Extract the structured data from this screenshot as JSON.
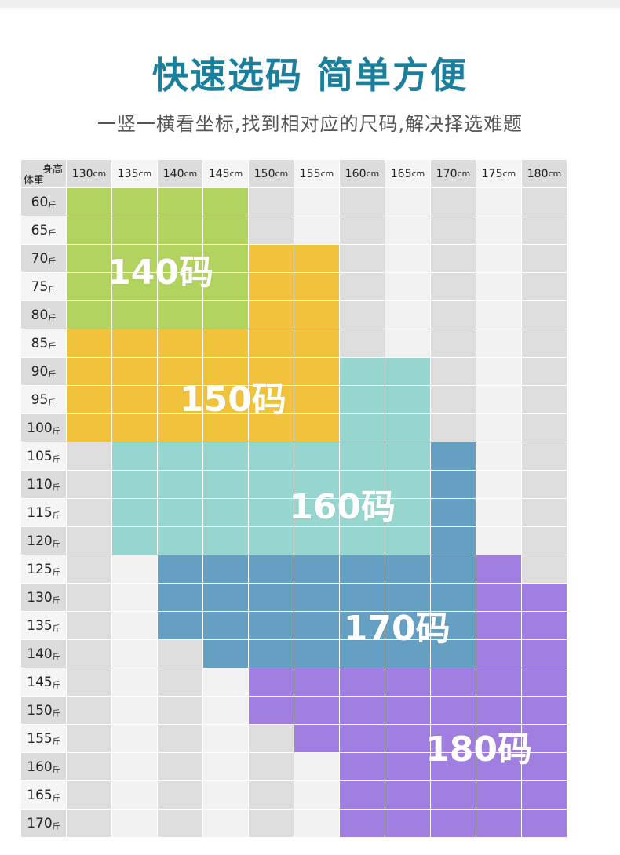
{
  "header": {
    "title": "快速选码 简单方便",
    "subtitle": "一竖一横看坐标,找到相对应的尺码,解决择选难题"
  },
  "table": {
    "corner_height_label": "身高",
    "corner_weight_label": "体重",
    "height_unit": "cm",
    "weight_unit": "斤",
    "heights": [
      "130",
      "135",
      "140",
      "145",
      "150",
      "155",
      "160",
      "165",
      "170",
      "175",
      "180"
    ],
    "weights": [
      "60",
      "65",
      "70",
      "75",
      "80",
      "85",
      "90",
      "95",
      "100",
      "105",
      "110",
      "115",
      "120",
      "125",
      "130",
      "135",
      "140",
      "145",
      "150",
      "155",
      "160",
      "165",
      "170"
    ],
    "size_grid": [
      [
        "140",
        "140",
        "140",
        "140",
        "",
        "",
        "",
        "",
        "",
        "",
        ""
      ],
      [
        "140",
        "140",
        "140",
        "140",
        "",
        "",
        "",
        "",
        "",
        "",
        ""
      ],
      [
        "140",
        "140",
        "140",
        "140",
        "150",
        "150",
        "",
        "",
        "",
        "",
        ""
      ],
      [
        "140",
        "140",
        "140",
        "140",
        "150",
        "150",
        "",
        "",
        "",
        "",
        ""
      ],
      [
        "140",
        "140",
        "140",
        "140",
        "150",
        "150",
        "",
        "",
        "",
        "",
        ""
      ],
      [
        "150",
        "150",
        "150",
        "150",
        "150",
        "150",
        "",
        "",
        "",
        "",
        ""
      ],
      [
        "150",
        "150",
        "150",
        "150",
        "150",
        "150",
        "160",
        "160",
        "",
        "",
        ""
      ],
      [
        "150",
        "150",
        "150",
        "150",
        "150",
        "150",
        "160",
        "160",
        "",
        "",
        ""
      ],
      [
        "150",
        "150",
        "150",
        "150",
        "150",
        "150",
        "160",
        "160",
        "",
        "",
        ""
      ],
      [
        "",
        "160",
        "160",
        "160",
        "160",
        "160",
        "160",
        "160",
        "170",
        "",
        ""
      ],
      [
        "",
        "160",
        "160",
        "160",
        "160",
        "160",
        "160",
        "160",
        "170",
        "",
        ""
      ],
      [
        "",
        "160",
        "160",
        "160",
        "160",
        "160",
        "160",
        "160",
        "170",
        "",
        ""
      ],
      [
        "",
        "160",
        "160",
        "160",
        "160",
        "160",
        "160",
        "160",
        "170",
        "",
        ""
      ],
      [
        "",
        "",
        "170",
        "170",
        "170",
        "170",
        "170",
        "170",
        "170",
        "180",
        ""
      ],
      [
        "",
        "",
        "170",
        "170",
        "170",
        "170",
        "170",
        "170",
        "170",
        "180",
        "180"
      ],
      [
        "",
        "",
        "170",
        "170",
        "170",
        "170",
        "170",
        "170",
        "170",
        "180",
        "180"
      ],
      [
        "",
        "",
        "",
        "170",
        "170",
        "170",
        "170",
        "170",
        "170",
        "180",
        "180"
      ],
      [
        "",
        "",
        "",
        "",
        "180",
        "180",
        "180",
        "180",
        "180",
        "180",
        "180"
      ],
      [
        "",
        "",
        "",
        "",
        "180",
        "180",
        "180",
        "180",
        "180",
        "180",
        "180"
      ],
      [
        "",
        "",
        "",
        "",
        "",
        "180",
        "180",
        "180",
        "180",
        "180",
        "180"
      ],
      [
        "",
        "",
        "",
        "",
        "",
        "",
        "180",
        "180",
        "180",
        "180",
        "180"
      ],
      [
        "",
        "",
        "",
        "",
        "",
        "",
        "180",
        "180",
        "180",
        "180",
        "180"
      ],
      [
        "",
        "",
        "",
        "",
        "",
        "",
        "180",
        "180",
        "180",
        "180",
        "180"
      ]
    ],
    "zones": [
      {
        "size": "140",
        "label": "140码",
        "color": "#b2d35e"
      },
      {
        "size": "150",
        "label": "150码",
        "color": "#f1c33d"
      },
      {
        "size": "160",
        "label": "160码",
        "color": "#97d6ce"
      },
      {
        "size": "170",
        "label": "170码",
        "color": "#659fc2"
      },
      {
        "size": "180",
        "label": "180码",
        "color": "#a07fe0"
      }
    ],
    "empty_colors": [
      "#dddddd",
      "#f2f2f2"
    ],
    "header_colors": [
      "#dcdcdc",
      "#f5f5f5"
    ]
  }
}
